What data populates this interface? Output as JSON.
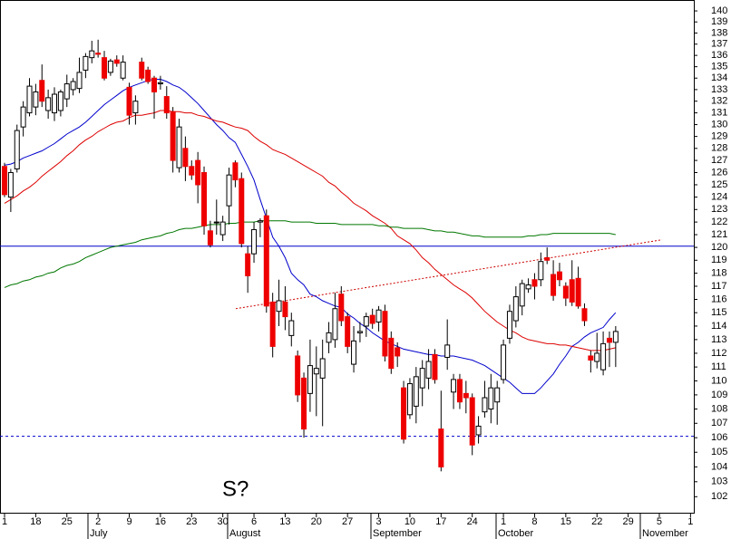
{
  "chart_data": {
    "type": "candlestick",
    "categories": [
      "1",
      null,
      null,
      null,
      null,
      "18",
      null,
      null,
      null,
      null,
      "25",
      null,
      null,
      null,
      null,
      "2",
      null,
      null,
      null,
      null,
      "9",
      null,
      null,
      null,
      null,
      "16",
      null,
      null,
      null,
      null,
      "23",
      null,
      null,
      null,
      null,
      "30",
      null,
      null,
      null,
      null,
      "6",
      null,
      null,
      null,
      null,
      "13",
      null,
      null,
      null,
      null,
      "20",
      null,
      null,
      null,
      null,
      "27",
      null,
      null,
      null,
      null,
      "3",
      null,
      null,
      null,
      null,
      "10",
      null,
      null,
      null,
      null,
      "17",
      null,
      null,
      null,
      null,
      "24",
      null,
      null,
      null,
      null,
      "1",
      null,
      null,
      null,
      null,
      "8",
      null,
      null,
      null,
      null,
      "15",
      null,
      null,
      null,
      null,
      "22",
      null,
      null,
      null,
      null,
      "29",
      null,
      null,
      null,
      null,
      "5",
      null,
      null,
      null,
      null,
      "1"
    ],
    "months": [
      "July",
      "August",
      "September",
      "October",
      "November"
    ],
    "open": [
      126.5,
      124,
      126.3,
      129.8,
      131,
      131.5,
      133.8,
      131.2,
      131,
      131.2,
      132.2,
      133,
      133.1,
      134.7,
      135.8,
      136.2,
      135.8,
      134.5,
      135.6,
      134,
      133.2,
      131,
      135.4,
      134.7,
      134,
      133.5,
      132.4,
      131.1,
      126.4,
      128,
      126.5,
      127,
      126,
      121.3,
      122,
      121,
      123.3,
      126.8,
      125.5,
      119.5,
      119.5,
      122,
      122.5,
      115.8,
      115.1,
      115.8,
      113.3,
      111.8,
      110.2,
      109.1,
      110.5,
      110.2,
      112.8,
      113,
      116.4,
      114.7,
      111.2,
      113.5,
      114,
      114.8,
      114.3,
      115.1,
      113.1,
      112.4,
      109.5,
      107.6,
      108.2,
      109.5,
      110.2,
      111.9,
      106.6,
      111.7,
      109.2,
      110.1,
      109.1,
      108.8,
      106.2,
      107.8,
      108,
      108.5,
      110.1,
      113.1,
      114.4,
      115.5,
      116.8,
      117.5,
      117.5,
      119.2,
      117.9,
      118.1,
      117,
      117.5,
      117.6,
      115.3,
      111.8,
      111.4,
      110.8,
      113.1,
      112.8,
      null,
      null,
      null,
      null,
      null,
      null,
      null,
      null,
      null,
      null,
      null,
      null
    ],
    "high": [
      126.8,
      126.3,
      130,
      132,
      134,
      133.5,
      135.2,
      133,
      133.2,
      133,
      134.3,
      134,
      135.8,
      136.2,
      137.3,
      137.4,
      136.4,
      135.7,
      136,
      136,
      133.6,
      132.5,
      135.8,
      135,
      134.2,
      134.2,
      133.3,
      131.5,
      130.5,
      129,
      127,
      127.7,
      126.5,
      122.1,
      123.8,
      122.5,
      126.4,
      127,
      126,
      120.1,
      122,
      122.3,
      123,
      116.5,
      117.5,
      117,
      115,
      112.2,
      110.6,
      113,
      112.5,
      113,
      114.3,
      116.5,
      117,
      115,
      114,
      114.3,
      115,
      115.3,
      115.5,
      115.6,
      113.6,
      112.8,
      110,
      110.2,
      111,
      111.5,
      112.3,
      112.3,
      109.3,
      114.5,
      110.5,
      110.5,
      110,
      109.1,
      107.5,
      110,
      110.5,
      110,
      113,
      115.6,
      117,
      117.5,
      117.6,
      118,
      119.6,
      120,
      119,
      118.8,
      117.3,
      119,
      118.5,
      115.7,
      112.2,
      113.5,
      113.6,
      113.6,
      114,
      null,
      null,
      null,
      null,
      null,
      null,
      null,
      null,
      null,
      null,
      null,
      null
    ],
    "low": [
      124,
      122.8,
      126,
      129,
      130.7,
      130.8,
      131.5,
      130.5,
      130.3,
      130.7,
      131.5,
      132.5,
      132.7,
      134,
      135.3,
      135.8,
      133.8,
      134.2,
      135,
      133.8,
      130,
      130,
      133.8,
      133.5,
      130.5,
      133,
      130.5,
      126,
      126,
      125.3,
      125.4,
      123.5,
      121,
      120,
      121,
      120.5,
      121.8,
      124.8,
      120,
      116.5,
      118.8,
      120.8,
      115,
      111.7,
      114,
      113.7,
      112.5,
      108.5,
      106,
      107.8,
      107.5,
      106.8,
      112,
      112.4,
      114,
      112,
      110.6,
      112.8,
      113.2,
      113.8,
      113.6,
      111.4,
      110.5,
      111,
      105.6,
      107.3,
      107,
      108.2,
      109.4,
      109.8,
      103.7,
      110.8,
      108,
      108,
      107.7,
      104.8,
      105.6,
      107.4,
      107,
      106.9,
      109.8,
      112.7,
      113.9,
      114.8,
      116.5,
      116,
      117,
      118.7,
      115.9,
      117,
      115.5,
      115.5,
      115.3,
      114,
      110.6,
      110.9,
      110.4,
      111,
      111,
      null,
      null,
      null,
      null,
      null,
      null,
      null,
      null,
      null,
      null,
      null,
      null
    ],
    "close": [
      124.2,
      126,
      129.5,
      131.5,
      133.3,
      132.8,
      132,
      132.3,
      132.6,
      132.8,
      133.5,
      133.7,
      134.5,
      135.9,
      136.4,
      136.1,
      134,
      135.5,
      135.3,
      135.4,
      130.8,
      132,
      134,
      133.7,
      132.8,
      133.6,
      131,
      127,
      129.8,
      126.5,
      125.8,
      125,
      121.7,
      120.2,
      122,
      122,
      125.8,
      125.4,
      120.3,
      117.8,
      121.4,
      122.1,
      115.5,
      112.5,
      115.9,
      114.7,
      114.4,
      109,
      106.6,
      111.1,
      110.9,
      111.6,
      113.5,
      115.3,
      114.4,
      112.5,
      112.9,
      113.6,
      114.7,
      114.2,
      115.2,
      111.8,
      110.9,
      111.8,
      105.9,
      109.8,
      110.3,
      110.9,
      111.4,
      110.1,
      104,
      112.6,
      110.1,
      108.5,
      108.8,
      105.5,
      106.8,
      108.8,
      109.5,
      109.5,
      112.6,
      115.1,
      116.2,
      117.2,
      117.1,
      117,
      118.9,
      119,
      116.3,
      117.5,
      116.1,
      115.8,
      115.5,
      114.4,
      111.5,
      112,
      112.7,
      112.8,
      113.6,
      null,
      null,
      null,
      null,
      null,
      null,
      null,
      null,
      null,
      null,
      null,
      null
    ],
    "up_color": "#ffffff",
    "down_color": "#ee0000",
    "lines": [
      {
        "color": "#0000cc",
        "values": [
          126.6,
          126.7,
          126.9,
          127.2,
          127.4,
          127.6,
          127.8,
          128.1,
          128.4,
          128.8,
          129.2,
          129.5,
          129.8,
          130.2,
          130.7,
          131.2,
          131.7,
          132.1,
          132.5,
          132.9,
          133.2,
          133.4,
          133.6,
          133.8,
          133.9,
          133.9,
          133.7,
          133.4,
          133.2,
          132.8,
          132.3,
          131.8,
          131.2,
          130.6,
          130,
          129.5,
          128.9,
          128.5,
          127.5,
          126.5,
          125.4,
          123.8,
          122.3,
          120.8,
          120.1,
          119.2,
          118,
          117.5,
          117.1,
          116.4,
          116.2,
          115.9,
          115.7,
          115.5,
          115.4,
          114.9,
          114.6,
          114.2,
          113.9,
          113.5,
          113.2,
          112.9,
          112.7,
          112.5,
          112.3,
          112.2,
          112.1,
          112,
          111.9,
          111.9,
          111.8,
          111.8,
          111.8,
          111.7,
          111.6,
          111.5,
          111.3,
          111.1,
          110.8,
          110.5,
          110.2,
          109.9,
          109.5,
          109.1,
          109.1,
          109.1,
          109.5,
          110,
          110.5,
          111.2,
          111.8,
          112.5,
          112.8,
          113.2,
          113.5,
          113.7,
          113.9,
          114.5,
          115,
          null,
          null,
          null,
          null,
          null,
          null,
          null,
          null,
          null,
          null,
          null,
          null
        ]
      },
      {
        "color": "#dd0000",
        "values": [
          123.5,
          123.8,
          124.1,
          124.5,
          124.8,
          125.2,
          125.7,
          126.1,
          126.5,
          126.9,
          127.4,
          127.8,
          128.3,
          128.7,
          129,
          129.4,
          129.7,
          130,
          130.2,
          130.3,
          130.6,
          130.8,
          130.8,
          130.9,
          131,
          131.2,
          131.2,
          131.1,
          131.1,
          131,
          131,
          130.8,
          130.7,
          130.5,
          130.3,
          130.2,
          130,
          129.8,
          129.7,
          129.5,
          129,
          128.6,
          128.3,
          127.9,
          127.7,
          127.5,
          127.2,
          126.9,
          126.6,
          126.3,
          126,
          125.7,
          125.2,
          124.9,
          124.4,
          124,
          123.5,
          123.2,
          122.9,
          122.5,
          122.2,
          121.9,
          121.5,
          120.9,
          120.6,
          120.3,
          119.8,
          119.2,
          118.8,
          118.3,
          117.9,
          117.5,
          117.1,
          116.8,
          116.5,
          116.1,
          115.6,
          115.1,
          114.7,
          114.3,
          114,
          113.7,
          113.5,
          113.2,
          113,
          112.9,
          112.8,
          112.7,
          112.7,
          112.6,
          112.6,
          112.5,
          112.4,
          112.3,
          112.2,
          112.2,
          112.2,
          112.3,
          112.4,
          null,
          null,
          null,
          null,
          null,
          null,
          null,
          null,
          null,
          null,
          null,
          null
        ]
      },
      {
        "color": "#007700",
        "values": [
          116.9,
          117.1,
          117.2,
          117.4,
          117.5,
          117.7,
          117.8,
          118,
          118.1,
          118.4,
          118.6,
          118.7,
          118.9,
          119.2,
          119.4,
          119.6,
          119.8,
          120,
          120.1,
          120.2,
          120.3,
          120.4,
          120.6,
          120.7,
          120.8,
          120.9,
          121.1,
          121.2,
          121.4,
          121.5,
          121.5,
          121.6,
          121.7,
          121.8,
          121.8,
          121.8,
          121.9,
          121.9,
          122,
          122,
          122,
          122.1,
          122.1,
          122.1,
          122.1,
          122.1,
          122,
          122,
          122,
          122,
          121.9,
          121.9,
          121.9,
          121.9,
          121.8,
          121.8,
          121.8,
          121.8,
          121.8,
          121.8,
          121.7,
          121.7,
          121.6,
          121.6,
          121.5,
          121.5,
          121.5,
          121.5,
          121.4,
          121.3,
          121.3,
          121.2,
          121.2,
          121.1,
          121,
          120.9,
          120.9,
          120.8,
          120.8,
          120.8,
          120.8,
          120.8,
          120.8,
          120.8,
          120.9,
          120.9,
          121,
          121,
          121.1,
          121.1,
          121.1,
          121.1,
          121.1,
          121.1,
          121.1,
          121.1,
          121.1,
          121.1,
          121,
          null,
          null,
          null,
          null,
          null,
          null,
          null,
          null,
          null,
          null,
          null,
          null
        ]
      }
    ],
    "reference_lines": [
      {
        "value": 120.1,
        "color": "#0000cc",
        "style": "solid"
      },
      {
        "value": 106.1,
        "color": "#0000cc",
        "style": "dashed"
      }
    ],
    "trendline": {
      "values": [
        115.3,
        120.6
      ],
      "color": "#cc0000"
    },
    "annotation": "S?",
    "annotation_color": "#0000dd",
    "ylim": [
      101,
      141
    ],
    "yticks": [
      102,
      103,
      104,
      105,
      106,
      107,
      108,
      109,
      110,
      111,
      112,
      113,
      114,
      115,
      116,
      117,
      118,
      119,
      120,
      121,
      122,
      123,
      124,
      125,
      126,
      127,
      128,
      129,
      130,
      131,
      132,
      133,
      134,
      135,
      136,
      137,
      138,
      139,
      140
    ],
    "log_scale": true,
    "grid": false
  }
}
